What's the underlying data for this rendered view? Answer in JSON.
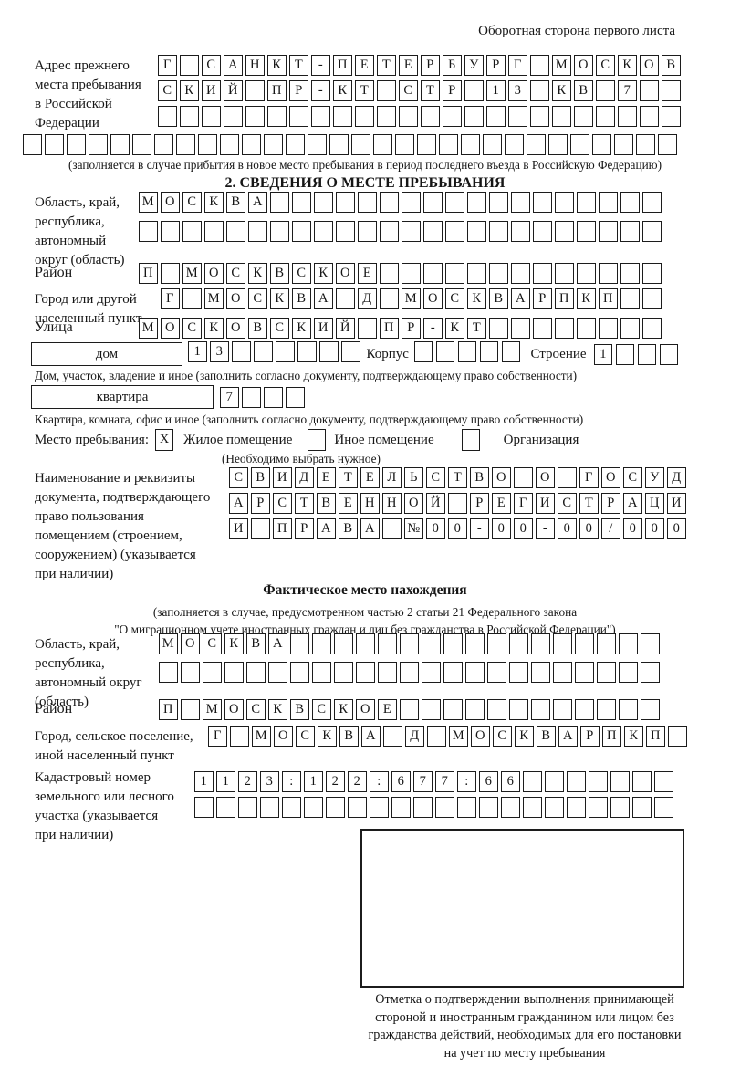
{
  "header_note": "Оборотная сторона первого листа",
  "prev_address": {
    "label_lines": [
      "Адрес прежнего",
      "места пребывания",
      "в Российской",
      "Федерации"
    ],
    "row1": {
      "text": "Г САНКТ-ПЕТЕРБУРГ МОСКОВ",
      "count": 24
    },
    "row2": {
      "text": "СКИЙ ПР-КТ СТР 13 КВ 7",
      "count": 24
    },
    "row3": {
      "text": "",
      "count": 24
    },
    "row4": {
      "text": "",
      "count": 30
    },
    "footnote": "(заполняется в случае прибытия в новое место пребывания в период последнего въезда в Российскую Федерацию)"
  },
  "section2": {
    "title": "2. СВЕДЕНИЯ О МЕСТЕ ПРЕБЫВАНИЯ",
    "region": {
      "label_lines": [
        "Область, край,",
        "республика,",
        "автономный",
        "округ (область)"
      ],
      "row1": {
        "text": "МОСКВА",
        "count": 24
      },
      "row2": {
        "text": "",
        "count": 24
      }
    },
    "district": {
      "label": "Район",
      "row": {
        "text": "П МОСКВСКОЕ",
        "count": 24
      }
    },
    "city": {
      "label_lines": [
        "Город или другой",
        "населенный пункт"
      ],
      "row": {
        "text": "Г МОСКВА Д МОСКВАРПКП",
        "count": 23
      }
    },
    "street": {
      "label": "Улица",
      "row": {
        "text": "МОСКОВСКИЙ ПР-КТ",
        "count": 24
      }
    },
    "house": {
      "box_label": "дом",
      "cells": {
        "text": "13",
        "count": 8
      },
      "korpus_label": "Корпус",
      "korpus_cells": {
        "text": "",
        "count": 5
      },
      "stroenie_label": "Строение",
      "stroenie_cells": {
        "text": "1",
        "count": 4
      }
    },
    "house_note": "Дом, участок, владение и иное (заполнить согласно документу, подтверждающему право собственности)",
    "apartment": {
      "box_label": "квартира",
      "cells": {
        "text": "7",
        "count": 4
      }
    },
    "apartment_note": "Квартира, комната, офис и иное (заполнить согласно документу, подтверждающему право собственности)",
    "stay_type": {
      "label": "Место пребывания:",
      "options": [
        {
          "label": "Жилое помещение",
          "mark": "X"
        },
        {
          "label": "Иное помещение",
          "mark": ""
        },
        {
          "label": "Организация",
          "mark": ""
        }
      ],
      "note": "(Необходимо выбрать нужное)"
    },
    "document": {
      "label_lines": [
        "Наименование и реквизиты",
        "документа, подтверждающего",
        "право пользования",
        "помещением (строением,",
        "сооружением) (указывается",
        "при наличии)"
      ],
      "row1": {
        "text": "СВИДЕТЕЛЬСТВО О ГОСУД",
        "count": 21
      },
      "row2": {
        "text": "АРСТВЕННОЙ РЕГИСТРАЦИ",
        "count": 21
      },
      "row3": {
        "text": "И ПРАВА №00-00-00/000",
        "count": 21
      }
    }
  },
  "actual": {
    "title": "Фактическое место нахождения",
    "note_line1": "(заполняется в случае, предусмотренном частью 2 статьи 21 Федерального закона",
    "note_line2": "\"О миграционном учете иностранных граждан и лиц без гражданства в Российской Федерации\")",
    "region": {
      "label_lines": [
        "Область, край,",
        "республика,",
        "автономный округ",
        "(область)"
      ],
      "row1": {
        "text": "МОСКВА",
        "count": 23
      },
      "row2": {
        "text": "",
        "count": 23
      }
    },
    "district": {
      "label": "Район",
      "row": {
        "text": "П МОСКВСКОЕ",
        "count": 23
      }
    },
    "city": {
      "label_lines": [
        "Город, сельское поселение,",
        "иной населенный пункт"
      ],
      "row": {
        "text": "Г МОСКВА Д МОСКВАРПКП",
        "count": 22
      }
    },
    "cadastral": {
      "label_lines": [
        "Кадастровый номер",
        "земельного или лесного",
        "участка (указывается",
        "при наличии)"
      ],
      "row1": {
        "text": "1123:122:677:66",
        "count": 22
      },
      "row2": {
        "text": "",
        "count": 22
      }
    }
  },
  "stamp_caption_lines": [
    "Отметка о подтверждении выполнения принимающей",
    "стороной и иностранным гражданином или лицом без",
    "гражданства действий, необходимых для его постановки",
    "на учет по месту пребывания"
  ]
}
